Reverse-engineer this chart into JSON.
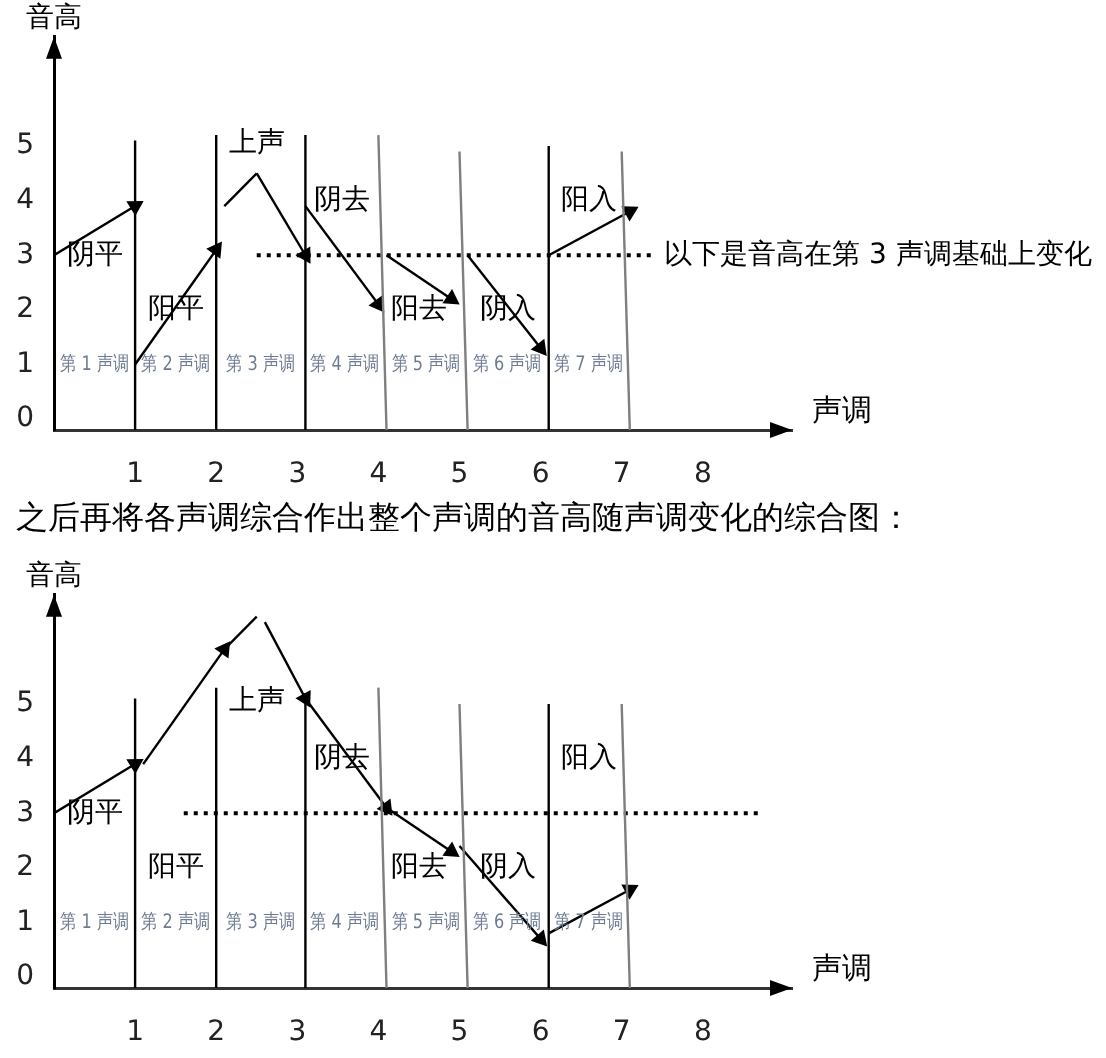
{
  "chart_data": [
    {
      "type": "line",
      "xlabel": "声调",
      "ylabel": "音高",
      "xlim": [
        0,
        9.1
      ],
      "ylim": [
        -0.2,
        7
      ],
      "xticks": [
        1,
        2,
        3,
        4,
        5,
        6,
        7,
        8
      ],
      "yticks": [
        0,
        1,
        2,
        3,
        4,
        5
      ],
      "series": [
        {
          "color": "#000000",
          "x": [
            1,
            1
          ],
          "values": [
            -0.2,
            5.1
          ]
        },
        {
          "color": "#000000",
          "x": [
            2,
            2
          ],
          "values": [
            -0.2,
            5.2
          ]
        },
        {
          "color": "#000000",
          "x": [
            3.1,
            3.1
          ],
          "values": [
            -0.2,
            5.2
          ]
        },
        {
          "color": "#7f7f7f",
          "x": [
            4.1,
            4.0
          ],
          "values": [
            -0.2,
            5.2
          ]
        },
        {
          "color": "#7f7f7f",
          "x": [
            5.1,
            5.0
          ],
          "values": [
            -0.2,
            4.9
          ]
        },
        {
          "color": "#000000",
          "x": [
            6.1,
            6.1
          ],
          "values": [
            -0.2,
            5.0
          ]
        },
        {
          "color": "#7f7f7f",
          "x": [
            7.1,
            7.0
          ],
          "values": [
            -0.2,
            4.9
          ]
        },
        {
          "name": "以下是音高在第 3 声调基础上变化",
          "color": "#000000",
          "line_style": "dotted",
          "x": [
            2.5,
            7.4
          ],
          "values": [
            3,
            3
          ]
        },
        {
          "color": "#000000",
          "marker": "triangle",
          "x": [
            0,
            1
          ],
          "values": [
            3,
            3.9
          ]
        },
        {
          "color": "#000000",
          "marker": "triangle",
          "x": [
            1,
            2
          ],
          "values": [
            1,
            3.1
          ]
        },
        {
          "color": "#000000",
          "x": [
            2.1,
            2.5
          ],
          "values": [
            3.9,
            4.5
          ]
        },
        {
          "color": "#000000",
          "marker": "triangle",
          "x": [
            2.5,
            3.1
          ],
          "values": [
            4.5,
            3
          ]
        },
        {
          "color": "#000000",
          "marker": "triangle",
          "x": [
            3.1,
            4
          ],
          "values": [
            3.9,
            2.1
          ]
        },
        {
          "color": "#000000",
          "marker": "triangle",
          "x": [
            4.1,
            4.9
          ],
          "values": [
            3,
            2.2
          ]
        },
        {
          "color": "#000000",
          "marker": "triangle",
          "x": [
            5.1,
            6
          ],
          "values": [
            3,
            1.3
          ]
        },
        {
          "color": "#000000",
          "marker": "triangle",
          "x": [
            6.1,
            7.1
          ],
          "values": [
            3,
            3.8
          ]
        }
      ],
      "annotations": [
        "阴平",
        "阳平",
        "上声",
        "阴去",
        "阳去",
        "阴入",
        "阳入",
        "第 1 声调",
        "第 2 声调",
        "第 3 声调",
        "第 4 声调",
        "第 5 声调",
        "第 6 声调",
        "第 7 声调"
      ]
    },
    {
      "type": "line",
      "title": "之后再将各声调综合作出整个声调的音高随声调变化的综合图：",
      "xlabel": "声调",
      "ylabel": "音高",
      "xlim": [
        0,
        9.1
      ],
      "ylim": [
        -0.2,
        7
      ],
      "xticks": [
        1,
        2,
        3,
        4,
        5,
        6,
        7,
        8
      ],
      "yticks": [
        0,
        1,
        2,
        3,
        4,
        5
      ],
      "series": [
        {
          "color": "#000000",
          "x": [
            1,
            1
          ],
          "values": [
            -0.2,
            5.1
          ]
        },
        {
          "color": "#000000",
          "x": [
            2,
            2
          ],
          "values": [
            -0.2,
            5.3
          ]
        },
        {
          "color": "#000000",
          "x": [
            3.1,
            3.1
          ],
          "values": [
            -0.2,
            5.2
          ]
        },
        {
          "color": "#7f7f7f",
          "x": [
            4.1,
            4.0
          ],
          "values": [
            -0.2,
            5.3
          ]
        },
        {
          "color": "#7f7f7f",
          "x": [
            5.1,
            5.0
          ],
          "values": [
            -0.2,
            5.0
          ]
        },
        {
          "color": "#000000",
          "x": [
            6.1,
            6.1
          ],
          "values": [
            -0.2,
            5.0
          ]
        },
        {
          "color": "#7f7f7f",
          "x": [
            7.1,
            7.0
          ],
          "values": [
            -0.2,
            5.0
          ]
        },
        {
          "color": "#000000",
          "line_style": "dotted",
          "x": [
            1.6,
            8.7
          ],
          "values": [
            3,
            3
          ]
        },
        {
          "color": "#000000",
          "marker": "triangle",
          "x": [
            0,
            1
          ],
          "values": [
            3,
            3.9
          ]
        },
        {
          "color": "#000000",
          "marker": "triangle",
          "x": [
            1.1,
            2.1
          ],
          "values": [
            3.9,
            6
          ]
        },
        {
          "color": "#000000",
          "x": [
            2.1,
            2.5
          ],
          "values": [
            6,
            6.6
          ]
        },
        {
          "color": "#000000",
          "marker": "triangle",
          "x": [
            2.6,
            3.1
          ],
          "values": [
            6.5,
            5.1
          ]
        },
        {
          "color": "#000000",
          "marker": "triangle",
          "x": [
            3.1,
            4.1
          ],
          "values": [
            5.1,
            3.1
          ]
        },
        {
          "color": "#000000",
          "marker": "triangle",
          "x": [
            4.1,
            4.9
          ],
          "values": [
            3.1,
            2.3
          ]
        },
        {
          "color": "#000000",
          "marker": "triangle",
          "x": [
            5,
            6
          ],
          "values": [
            2.4,
            0.7
          ]
        },
        {
          "color": "#000000",
          "marker": "triangle",
          "x": [
            6.1,
            7.1
          ],
          "values": [
            0.8,
            1.6
          ]
        }
      ],
      "annotations": [
        "阴平",
        "阳平",
        "上声",
        "阴去",
        "阳去",
        "阴入",
        "阳入",
        "第 1 声调",
        "第 2 声调",
        "第 3 声调",
        "第 4 声调",
        "第 5 声调",
        "第 6 声调",
        "第 7 声调"
      ]
    }
  ]
}
